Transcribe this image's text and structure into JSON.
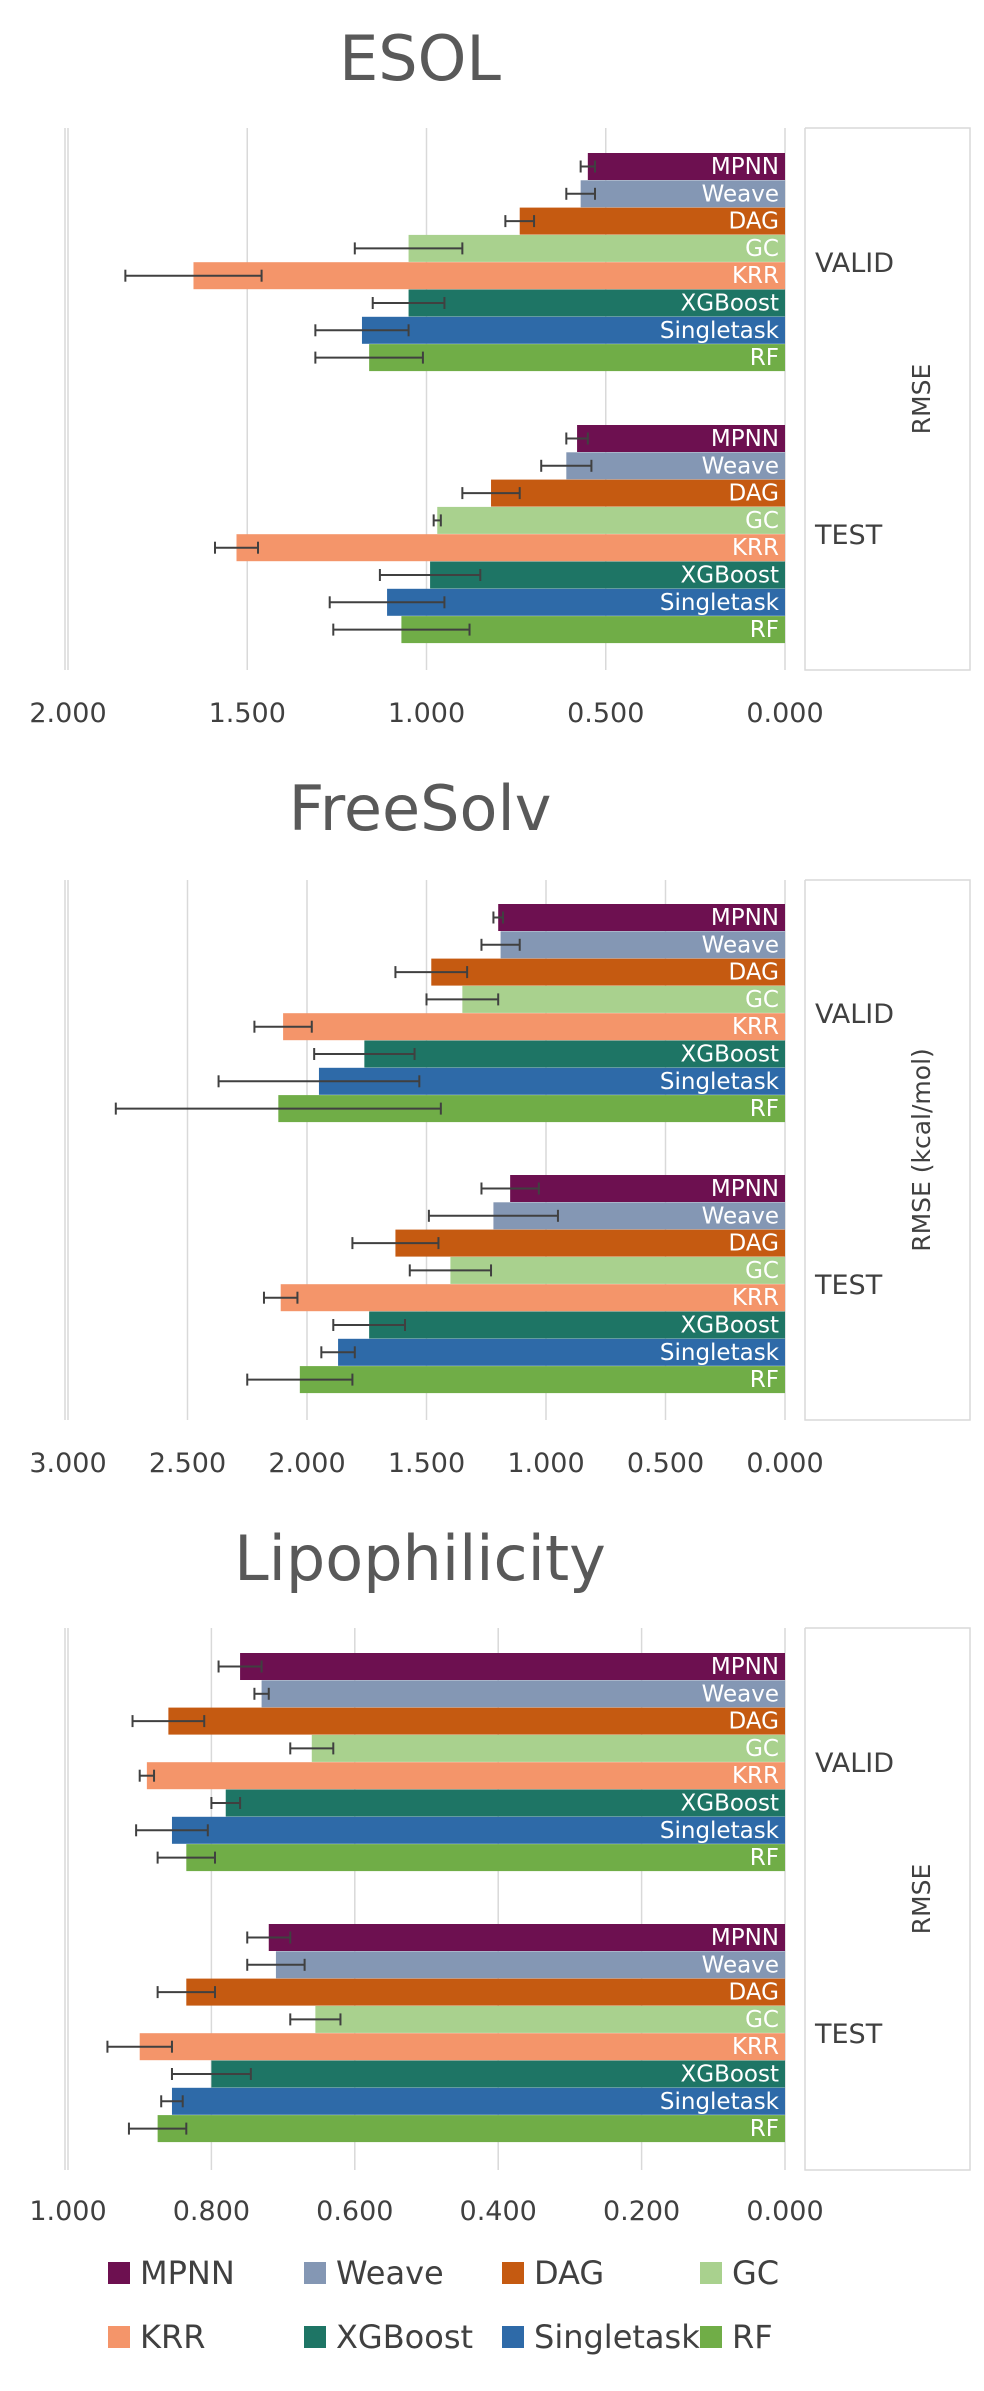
{
  "colors": {
    "MPNN": "#6d1050",
    "Weave": "#8497b4",
    "DAG": "#c55a11",
    "GC": "#a9d18e",
    "KRR": "#f4956a",
    "XGBoost": "#1e7565",
    "Singletask": "#2e6aa8",
    "RF": "#70ad47"
  },
  "legend": [
    "MPNN",
    "Weave",
    "DAG",
    "GC",
    "KRR",
    "XGBoost",
    "Singletask",
    "RF"
  ],
  "chart_data": [
    {
      "type": "bar",
      "orientation": "horizontal",
      "x_reversed": true,
      "title": "ESOL",
      "xlim": [
        0,
        2.0
      ],
      "xticks": [
        "2.000",
        "1.500",
        "1.000",
        "0.500",
        "0.000"
      ],
      "xtick_values": [
        2.0,
        1.5,
        1.0,
        0.5,
        0.0
      ],
      "ylabel": "RMSE",
      "legend": "bottom",
      "grid": true,
      "groups": [
        {
          "name": "VALID",
          "bars": [
            {
              "model": "MPNN",
              "value": 0.55,
              "err": 0.02
            },
            {
              "model": "Weave",
              "value": 0.57,
              "err": 0.04
            },
            {
              "model": "DAG",
              "value": 0.74,
              "err": 0.04
            },
            {
              "model": "GC",
              "value": 1.05,
              "err": 0.15
            },
            {
              "model": "KRR",
              "value": 1.65,
              "err": 0.19
            },
            {
              "model": "XGBoost",
              "value": 1.05,
              "err": 0.1
            },
            {
              "model": "Singletask",
              "value": 1.18,
              "err": 0.13
            },
            {
              "model": "RF",
              "value": 1.16,
              "err": 0.15
            }
          ]
        },
        {
          "name": "TEST",
          "bars": [
            {
              "model": "MPNN",
              "value": 0.58,
              "err": 0.03
            },
            {
              "model": "Weave",
              "value": 0.61,
              "err": 0.07
            },
            {
              "model": "DAG",
              "value": 0.82,
              "err": 0.08
            },
            {
              "model": "GC",
              "value": 0.97,
              "err": 0.01
            },
            {
              "model": "KRR",
              "value": 1.53,
              "err": 0.06
            },
            {
              "model": "XGBoost",
              "value": 0.99,
              "err": 0.14
            },
            {
              "model": "Singletask",
              "value": 1.11,
              "err": 0.16
            },
            {
              "model": "RF",
              "value": 1.07,
              "err": 0.19
            }
          ]
        }
      ]
    },
    {
      "type": "bar",
      "orientation": "horizontal",
      "x_reversed": true,
      "title": "FreeSolv",
      "xlim": [
        0,
        3.0
      ],
      "xticks": [
        "3.000",
        "2.500",
        "2.000",
        "1.500",
        "1.000",
        "0.500",
        "0.000"
      ],
      "xtick_values": [
        3.0,
        2.5,
        2.0,
        1.5,
        1.0,
        0.5,
        0.0
      ],
      "ylabel": "RMSE (kcal/mol)",
      "legend": "bottom",
      "grid": true,
      "groups": [
        {
          "name": "VALID",
          "bars": [
            {
              "model": "MPNN",
              "value": 1.2,
              "err": 0.02
            },
            {
              "model": "Weave",
              "value": 1.19,
              "err": 0.08
            },
            {
              "model": "DAG",
              "value": 1.48,
              "err": 0.15
            },
            {
              "model": "GC",
              "value": 1.35,
              "err": 0.15
            },
            {
              "model": "KRR",
              "value": 2.1,
              "err": 0.12
            },
            {
              "model": "XGBoost",
              "value": 1.76,
              "err": 0.21
            },
            {
              "model": "Singletask",
              "value": 1.95,
              "err": 0.42
            },
            {
              "model": "RF",
              "value": 2.12,
              "err": 0.68
            }
          ]
        },
        {
          "name": "TEST",
          "bars": [
            {
              "model": "MPNN",
              "value": 1.15,
              "err": 0.12
            },
            {
              "model": "Weave",
              "value": 1.22,
              "err": 0.27
            },
            {
              "model": "DAG",
              "value": 1.63,
              "err": 0.18
            },
            {
              "model": "GC",
              "value": 1.4,
              "err": 0.17
            },
            {
              "model": "KRR",
              "value": 2.11,
              "err": 0.07
            },
            {
              "model": "XGBoost",
              "value": 1.74,
              "err": 0.15
            },
            {
              "model": "Singletask",
              "value": 1.87,
              "err": 0.07
            },
            {
              "model": "RF",
              "value": 2.03,
              "err": 0.22
            }
          ]
        }
      ]
    },
    {
      "type": "bar",
      "orientation": "horizontal",
      "x_reversed": true,
      "title": "Lipophilicity",
      "xlim": [
        0,
        1.0
      ],
      "xticks": [
        "1.000",
        "0.800",
        "0.600",
        "0.400",
        "0.200",
        "0.000"
      ],
      "xtick_values": [
        1.0,
        0.8,
        0.6,
        0.4,
        0.2,
        0.0
      ],
      "ylabel": "RMSE",
      "legend": "bottom",
      "grid": true,
      "groups": [
        {
          "name": "VALID",
          "bars": [
            {
              "model": "MPNN",
              "value": 0.76,
              "err": 0.03
            },
            {
              "model": "Weave",
              "value": 0.73,
              "err": 0.01
            },
            {
              "model": "DAG",
              "value": 0.86,
              "err": 0.05
            },
            {
              "model": "GC",
              "value": 0.66,
              "err": 0.03
            },
            {
              "model": "KRR",
              "value": 0.89,
              "err": 0.01
            },
            {
              "model": "XGBoost",
              "value": 0.78,
              "err": 0.02
            },
            {
              "model": "Singletask",
              "value": 0.855,
              "err": 0.05
            },
            {
              "model": "RF",
              "value": 0.835,
              "err": 0.04
            }
          ]
        },
        {
          "name": "TEST",
          "bars": [
            {
              "model": "MPNN",
              "value": 0.72,
              "err": 0.03
            },
            {
              "model": "Weave",
              "value": 0.71,
              "err": 0.04
            },
            {
              "model": "DAG",
              "value": 0.835,
              "err": 0.04
            },
            {
              "model": "GC",
              "value": 0.655,
              "err": 0.035
            },
            {
              "model": "KRR",
              "value": 0.9,
              "err": 0.045
            },
            {
              "model": "XGBoost",
              "value": 0.8,
              "err": 0.055
            },
            {
              "model": "Singletask",
              "value": 0.855,
              "err": 0.015
            },
            {
              "model": "RF",
              "value": 0.875,
              "err": 0.04
            }
          ]
        }
      ]
    }
  ]
}
